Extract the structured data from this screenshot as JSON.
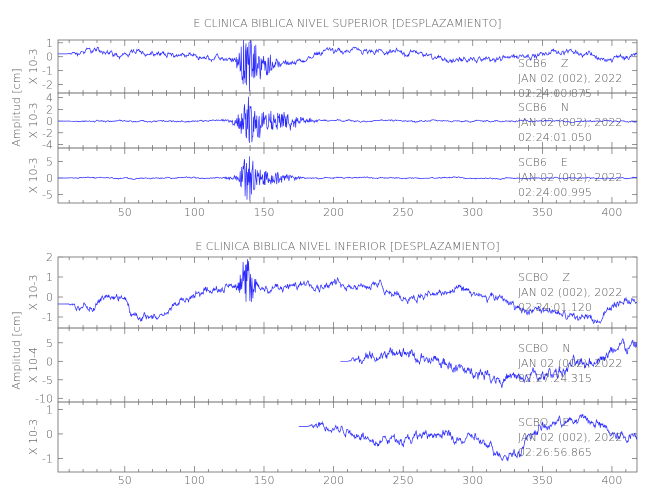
{
  "chart_data": [
    {
      "type": "line",
      "title": "E CLINICA BIBLICA NIVEL SUPERIOR [DESPLAZAMIENTO]",
      "ylabel": "Amplitud [cm]",
      "xlim": [
        2,
        418
      ],
      "xticks": [
        50,
        100,
        150,
        200,
        250,
        300,
        350,
        400
      ],
      "trace_color": "#2a2aff",
      "panels": [
        {
          "station": "SCB6",
          "component": "Z",
          "date": "JAN 02 (002), 2022",
          "time": "02:24:00.875",
          "scale_label": "X 10-3",
          "ylim": [
            -2.6,
            1.2
          ],
          "yticks": [
            1,
            0,
            -1,
            -2
          ],
          "start": 2,
          "end": 418,
          "noise": 0.35,
          "trend": [
            [
              2,
              0.2
            ],
            [
              15,
              0.2
            ],
            [
              20,
              0.4
            ],
            [
              60,
              0.3
            ],
            [
              100,
              0.1
            ],
            [
              125,
              -0.2
            ],
            [
              150,
              -0.6
            ],
            [
              175,
              -0.5
            ],
            [
              195,
              0.4
            ],
            [
              260,
              0.2
            ],
            [
              285,
              -0.4
            ],
            [
              320,
              0
            ],
            [
              360,
              0.3
            ],
            [
              385,
              0.3
            ],
            [
              395,
              -0.4
            ],
            [
              405,
              0
            ],
            [
              418,
              0
            ]
          ],
          "bursts": [
            [
              138,
              6,
              2.2
            ],
            [
              148,
              12,
              0.8
            ]
          ]
        },
        {
          "station": "SCB6",
          "component": "N",
          "date": "JAN 02 (002), 2022",
          "time": "02:24:01.050",
          "scale_label": "X 10-3",
          "ylim": [
            -4.6,
            4.8
          ],
          "yticks": [
            4,
            2,
            0,
            -2,
            -4
          ],
          "start": 2,
          "end": 418,
          "noise": 0.25,
          "trend": [
            [
              2,
              0
            ],
            [
              50,
              0
            ],
            [
              418,
              0
            ]
          ],
          "bursts": [
            [
              140,
              8,
              4
            ],
            [
              155,
              20,
              1.8
            ],
            [
              175,
              10,
              0.6
            ]
          ]
        },
        {
          "station": "SCB6",
          "component": "E",
          "date": "JAN 02 (002), 2022",
          "time": "02:24:00.995",
          "scale_label": "X 10-3",
          "ylim": [
            -7.5,
            9
          ],
          "yticks": [
            5,
            0,
            -5
          ],
          "start": 2,
          "end": 418,
          "noise": 0.35,
          "trend": [
            [
              2,
              0
            ],
            [
              418,
              0
            ]
          ],
          "bursts": [
            [
              138,
              5,
              7
            ],
            [
              150,
              18,
              2.5
            ]
          ]
        }
      ]
    },
    {
      "type": "line",
      "title": "E CLINICA BIBLICA NIVEL INFERIOR [DESPLAZAMIENTO]",
      "ylabel": "Amplitud [cm]",
      "xlim": [
        2,
        418
      ],
      "xticks": [
        50,
        100,
        150,
        200,
        250,
        300,
        350,
        400
      ],
      "trace_color": "#2a2aff",
      "panels": [
        {
          "station": "SCBO",
          "component": "Z",
          "date": "JAN 02 (002), 2022",
          "time": "02:24:01.120",
          "scale_label": "X 10-3",
          "ylim": [
            -1.55,
            2
          ],
          "yticks": [
            2,
            1,
            0,
            -1
          ],
          "start": 2,
          "end": 418,
          "noise": 0.35,
          "trend": [
            [
              2,
              -0.35
            ],
            [
              10,
              -0.35
            ],
            [
              20,
              -0.7
            ],
            [
              35,
              0
            ],
            [
              50,
              0.1
            ],
            [
              55,
              -0.9
            ],
            [
              70,
              -1.1
            ],
            [
              100,
              0.1
            ],
            [
              125,
              0.6
            ],
            [
              150,
              0.4
            ],
            [
              200,
              0.8
            ],
            [
              230,
              0.6
            ],
            [
              250,
              0
            ],
            [
              290,
              0.4
            ],
            [
              320,
              -0.2
            ],
            [
              350,
              -0.8
            ],
            [
              390,
              -1.1
            ],
            [
              405,
              -0.2
            ],
            [
              418,
              -0.1
            ]
          ],
          "bursts": [
            [
              138,
              6,
              1.2
            ]
          ]
        },
        {
          "station": "SCBO",
          "component": "N",
          "date": "JAN 02 (002), 2022",
          "time": "02:27:24.315",
          "scale_label": "X 10-4",
          "ylim": [
            -11,
            9
          ],
          "yticks": [
            5,
            0,
            -5,
            -10
          ],
          "start": 205,
          "end": 418,
          "noise": 2.8,
          "trend": [
            [
              205,
              0
            ],
            [
              210,
              0
            ],
            [
              235,
              2
            ],
            [
              260,
              1
            ],
            [
              300,
              -3
            ],
            [
              330,
              -5
            ],
            [
              350,
              -4
            ],
            [
              380,
              0
            ],
            [
              410,
              3
            ],
            [
              418,
              4
            ]
          ],
          "bursts": []
        },
        {
          "station": "SCBO",
          "component": "E",
          "date": "JAN 02 (002), 2022",
          "time": "02:26:56.865",
          "scale_label": "X 10-3",
          "ylim": [
            -1.55,
            1.3
          ],
          "yticks": [
            1,
            0,
            -1
          ],
          "start": 175,
          "end": 418,
          "noise": 0.35,
          "trend": [
            [
              175,
              0.3
            ],
            [
              182,
              0.3
            ],
            [
              200,
              0.2
            ],
            [
              240,
              -0.2
            ],
            [
              300,
              -0.1
            ],
            [
              320,
              -1
            ],
            [
              335,
              -0.5
            ],
            [
              350,
              0.3
            ],
            [
              380,
              0.6
            ],
            [
              405,
              0
            ],
            [
              418,
              -0.1
            ]
          ],
          "bursts": []
        }
      ]
    }
  ]
}
